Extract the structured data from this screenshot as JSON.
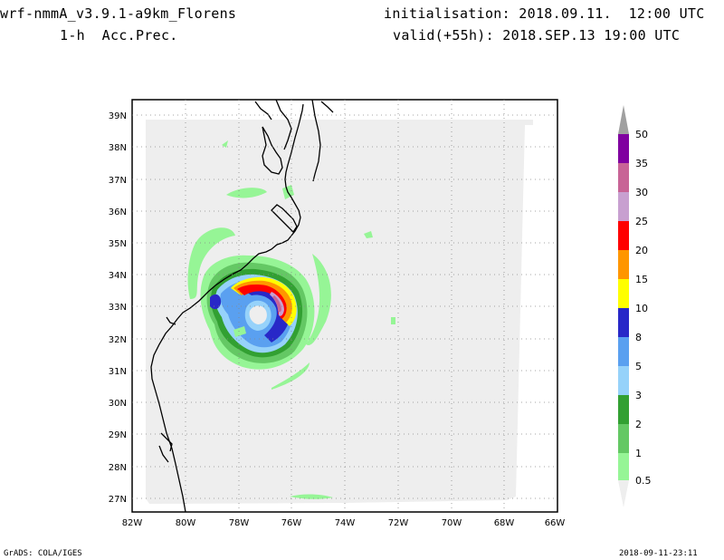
{
  "header": {
    "model": "wrf-nmmA_v3.9.1-a9km_Florens",
    "field": "1-h  Acc.Prec.",
    "init": "initialisation: 2018.09.11.  12:00 UTC",
    "valid": "valid(+55h): 2018.SEP.13 19:00 UTC"
  },
  "map": {
    "lat_labels": [
      "39N",
      "38N",
      "37N",
      "36N",
      "35N",
      "34N",
      "33N",
      "32N",
      "31N",
      "30N",
      "29N",
      "28N",
      "27N"
    ],
    "lon_labels": [
      "82W",
      "80W",
      "78W",
      "76W",
      "74W",
      "72W",
      "70W",
      "68W",
      "66W"
    ],
    "lat_range": [
      26.5,
      39.3
    ],
    "lon_range": [
      -82,
      -66
    ],
    "grid": true,
    "background_color": "#eeeeee"
  },
  "colorbar": {
    "levels": [
      "50",
      "35",
      "30",
      "25",
      "20",
      "15",
      "10",
      "8",
      "5",
      "3",
      "2",
      "1",
      "0.5"
    ],
    "colors": [
      "#a0a0a0",
      "#8000a0",
      "#c86496",
      "#c8a0d0",
      "#ff0000",
      "#ff9600",
      "#ffff00",
      "#2828c8",
      "#5aa0f0",
      "#96d2fa",
      "#32a032",
      "#64c864",
      "#96f596"
    ]
  },
  "footer": {
    "left": "GrADS: COLA/IGES",
    "right": "2018-09-11-23:11"
  }
}
